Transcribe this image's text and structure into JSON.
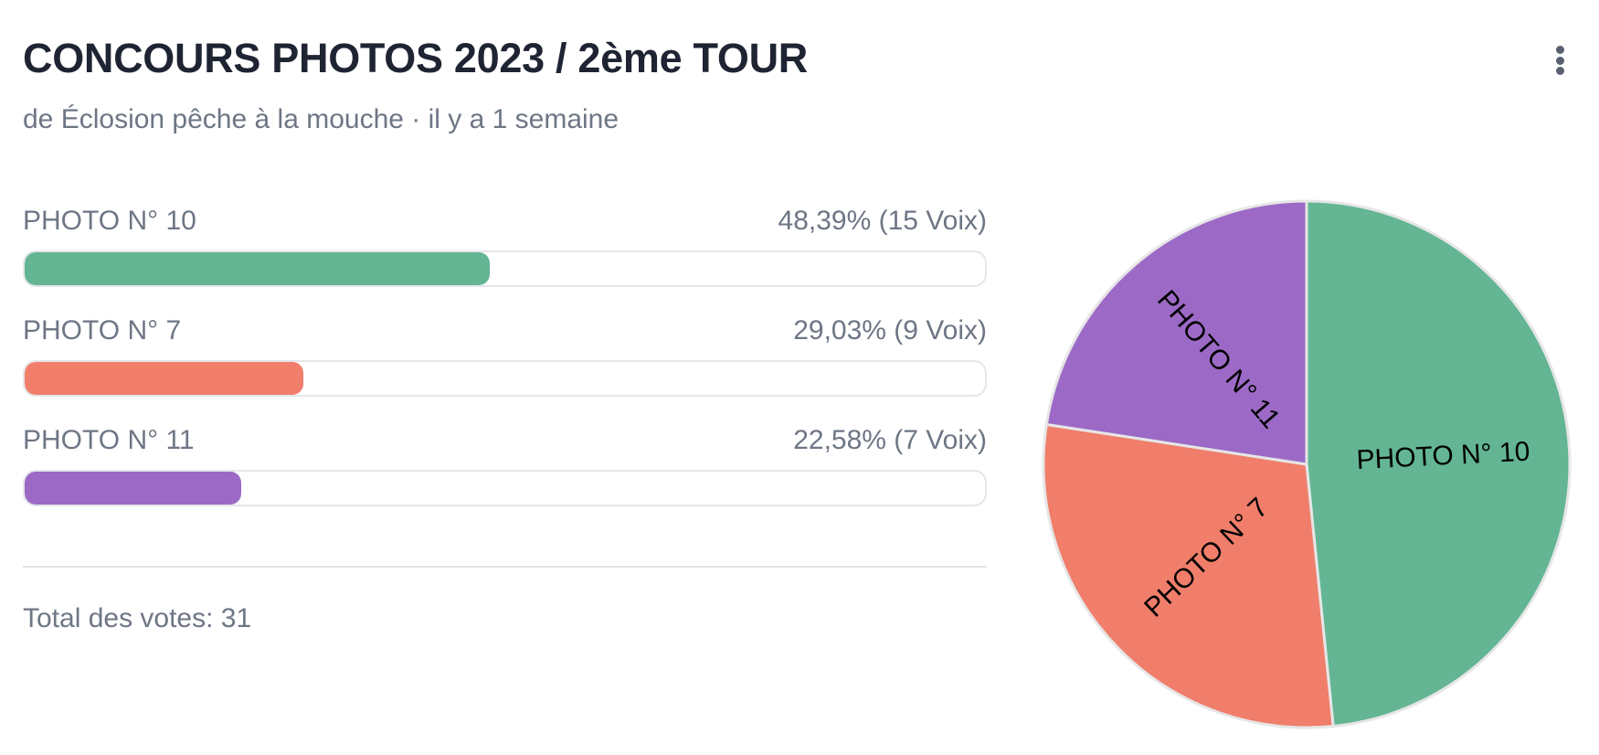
{
  "poll": {
    "title": "CONCOURS PHOTOS 2023 / 2ème TOUR",
    "subtitle": "de Éclosion pêche à la mouche · il y a 1 semaine",
    "total_label": "Total des votes: 31",
    "menu_icon": "more-vertical-icon"
  },
  "options": [
    {
      "label": "PHOTO N° 10",
      "result": "48,39% (15 Voix)",
      "percent": 48.39,
      "votes": 15,
      "color": "#63b593"
    },
    {
      "label": "PHOTO N° 7",
      "result": "29,03% (9 Voix)",
      "percent": 29.03,
      "votes": 9,
      "color": "#f07e6b"
    },
    {
      "label": "PHOTO N° 11",
      "result": "22,58% (7 Voix)",
      "percent": 22.58,
      "votes": 7,
      "color": "#9c6ac6"
    }
  ],
  "chart_data": {
    "type": "pie",
    "title": "",
    "categories": [
      "PHOTO N° 10",
      "PHOTO N° 7",
      "PHOTO N° 11"
    ],
    "values": [
      15,
      9,
      7
    ],
    "colors": [
      "#63b593",
      "#f07e6b",
      "#9c6ac6"
    ],
    "legend": "none"
  }
}
